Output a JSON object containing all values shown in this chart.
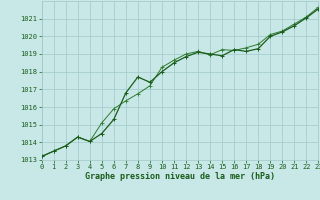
{
  "xlabel": "Graphe pression niveau de la mer (hPa)",
  "ylim": [
    1013,
    1022
  ],
  "xlim": [
    0,
    23
  ],
  "yticks": [
    1013,
    1014,
    1015,
    1016,
    1017,
    1018,
    1019,
    1020,
    1021
  ],
  "xticks": [
    0,
    1,
    2,
    3,
    4,
    5,
    6,
    7,
    8,
    9,
    10,
    11,
    12,
    13,
    14,
    15,
    16,
    17,
    18,
    19,
    20,
    21,
    22,
    23
  ],
  "background_color": "#c8e8e8",
  "grid_color": "#a0c8c8",
  "line_color1": "#1a5c1a",
  "line_color2": "#2e7a2e",
  "series1_x": [
    0,
    1,
    2,
    3,
    4,
    5,
    6,
    7,
    8,
    9,
    10,
    11,
    12,
    13,
    14,
    15,
    16,
    17,
    18,
    19,
    20,
    21,
    22,
    23
  ],
  "series1_y": [
    1013.2,
    1013.5,
    1013.8,
    1014.3,
    1014.05,
    1014.5,
    1015.3,
    1016.8,
    1017.7,
    1017.4,
    1018.0,
    1018.5,
    1018.85,
    1019.1,
    1019.0,
    1018.9,
    1019.25,
    1019.15,
    1019.3,
    1020.0,
    1020.25,
    1020.6,
    1021.05,
    1021.55
  ],
  "series2_x": [
    0,
    1,
    2,
    3,
    4,
    5,
    6,
    7,
    8,
    9,
    10,
    11,
    12,
    13,
    14,
    15,
    16,
    17,
    18,
    19,
    20,
    21,
    22,
    23
  ],
  "series2_y": [
    1013.2,
    1013.5,
    1013.8,
    1014.3,
    1014.05,
    1015.1,
    1015.9,
    1016.35,
    1016.75,
    1017.2,
    1018.25,
    1018.65,
    1019.0,
    1019.15,
    1018.95,
    1019.25,
    1019.2,
    1019.35,
    1019.55,
    1020.1,
    1020.3,
    1020.7,
    1021.1,
    1021.65
  ],
  "lw1": 0.9,
  "lw2": 0.7,
  "marker_size": 2.5,
  "tick_fontsize": 5.0,
  "xlabel_fontsize": 6.0
}
